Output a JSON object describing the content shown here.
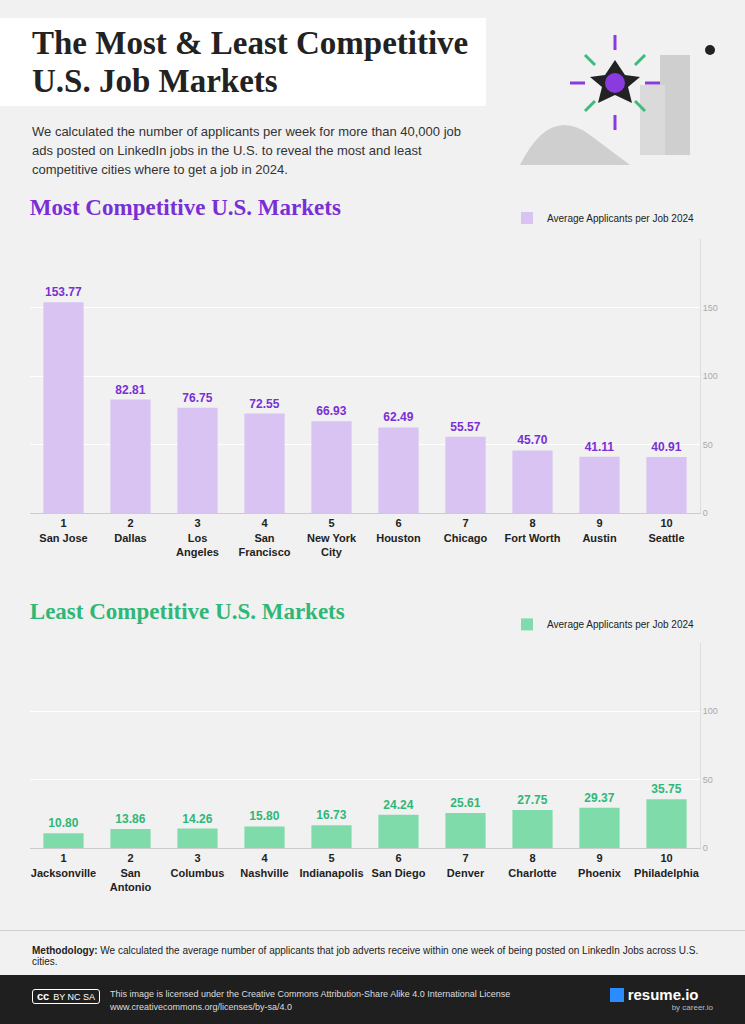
{
  "header": {
    "title": "The Most & Least Competitive U.S. Job Markets",
    "subtitle": "We calculated the number of applicants per week for more than 40,000 job ads posted on LinkedIn jobs in the U.S. to reveal the most and least competitive cities where to get a job in 2024."
  },
  "chart_data": [
    {
      "type": "bar",
      "title": "Most Competitive U.S. Markets",
      "ranks": [
        1,
        2,
        3,
        4,
        5,
        6,
        7,
        8,
        9,
        10
      ],
      "categories": [
        "San Jose",
        "Dallas",
        "Los Angeles",
        "San Francisco",
        "New York City",
        "Houston",
        "Chicago",
        "Fort Worth",
        "Austin",
        "Seattle"
      ],
      "series": [
        {
          "name": "Average Applicants per Job 2024",
          "color": "#d9c3f3",
          "values": [
            153.77,
            82.81,
            76.75,
            72.55,
            66.93,
            62.49,
            55.57,
            45.7,
            41.11,
            40.91
          ],
          "value_labels": [
            "153.77",
            "82.81",
            "76.75",
            "72.55",
            "66.93",
            "62.49",
            "55.57",
            "45.70",
            "41.11",
            "40.91"
          ]
        }
      ],
      "ylim": [
        0,
        200
      ],
      "yticks": [
        0,
        50,
        100,
        150
      ],
      "grid": true,
      "legend": "upper right",
      "data_labels": true
    },
    {
      "type": "bar",
      "title": "Least Competitive U.S. Markets",
      "ranks": [
        1,
        2,
        3,
        4,
        5,
        6,
        7,
        8,
        9,
        10
      ],
      "categories": [
        "Jacksonville",
        "San Antonio",
        "Columbus",
        "Nashville",
        "Indianapolis",
        "San Diego",
        "Denver",
        "Charlotte",
        "Phoenix",
        "Philadelphia"
      ],
      "series": [
        {
          "name": "Average Applicants per Job 2024",
          "color": "#7fdcaa",
          "values": [
            10.8,
            13.86,
            14.26,
            15.8,
            16.73,
            24.24,
            25.61,
            27.75,
            29.37,
            35.75
          ],
          "value_labels": [
            "10.80",
            "13.86",
            "14.26",
            "15.80",
            "16.73",
            "24.24",
            "25.61",
            "27.75",
            "29.37",
            "35.75"
          ]
        }
      ],
      "ylim": [
        0,
        150
      ],
      "yticks": [
        0,
        50,
        100
      ],
      "grid": true,
      "legend": "upper right",
      "data_labels": true
    }
  ],
  "methodology": {
    "label": "Methodology:",
    "text": "We calculated the average number of applicants that job adverts receive within one week of being posted on LinkedIn Jobs across U.S. cities."
  },
  "footer": {
    "badge_mark": "cc",
    "badge_labels": [
      "BY",
      "NC",
      "SA"
    ],
    "license": "This image is licensed under the Creative Commons Attribution-Share Alike 4.0 International License",
    "url": "www.creativecommons.org/licenses/by-sa/4.0",
    "brand": "resume.io",
    "brand_sub": "by career.io"
  }
}
